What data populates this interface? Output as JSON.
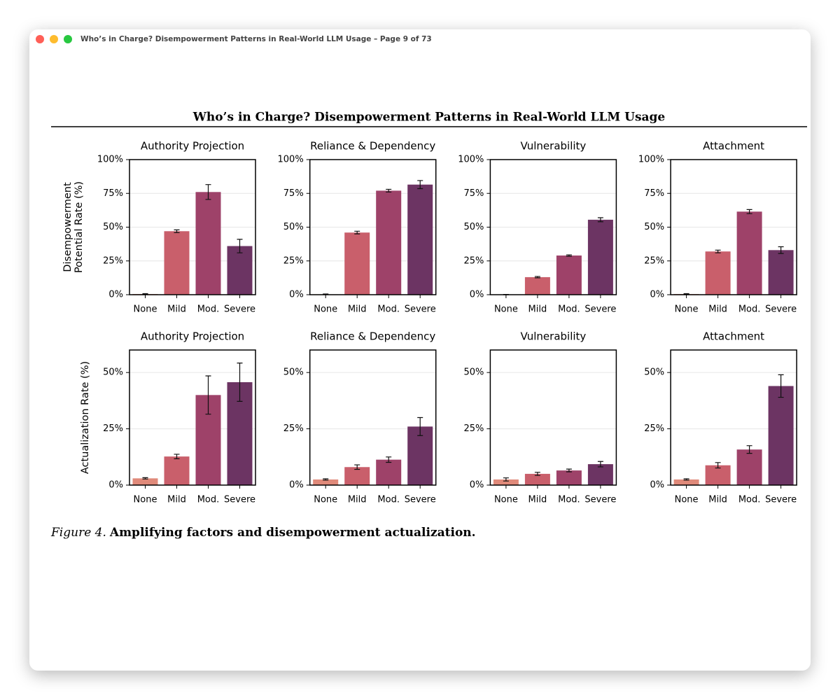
{
  "window": {
    "title": "Who’s in Charge? Disempowerment Patterns in Real-World LLM Usage – Page 9 of 73"
  },
  "header": {
    "title": "Who’s in Charge? Disempowerment Patterns in Real-World LLM Usage"
  },
  "chart_data": [
    {
      "type": "bar",
      "title": "Authority Projection",
      "ylabel": [
        "Disempowerment",
        "Potential Rate (%)"
      ],
      "categories": [
        "None",
        "Mild",
        "Mod.",
        "Severe"
      ],
      "values": [
        0.5,
        47,
        76,
        36
      ],
      "errors": [
        0.3,
        1,
        5.5,
        5
      ],
      "colors": [
        "#e08a7a",
        "#c95f6b",
        "#9e4269",
        "#6c3463"
      ],
      "ylim": [
        0,
        100
      ],
      "yticks": [
        {
          "value": 0,
          "label": "0%"
        },
        {
          "value": 25,
          "label": "25%"
        },
        {
          "value": 50,
          "label": "50%"
        },
        {
          "value": 75,
          "label": "75%"
        },
        {
          "value": 100,
          "label": "100%"
        }
      ],
      "grid": true
    },
    {
      "type": "bar",
      "title": "Reliance & Dependency",
      "categories": [
        "None",
        "Mild",
        "Mod.",
        "Severe"
      ],
      "values": [
        0.3,
        46,
        77,
        81.5
      ],
      "errors": [
        0.2,
        1,
        1,
        3
      ],
      "colors": [
        "#e08a7a",
        "#c95f6b",
        "#9e4269",
        "#6c3463"
      ],
      "ylim": [
        0,
        100
      ],
      "yticks": [
        {
          "value": 0,
          "label": "0%"
        },
        {
          "value": 25,
          "label": "25%"
        },
        {
          "value": 50,
          "label": "50%"
        },
        {
          "value": 75,
          "label": "75%"
        },
        {
          "value": 100,
          "label": "100%"
        }
      ],
      "grid": true
    },
    {
      "type": "bar",
      "title": "Vulnerability",
      "categories": [
        "None",
        "Mild",
        "Mod.",
        "Severe"
      ],
      "values": [
        0.1,
        13,
        29,
        55.5
      ],
      "errors": [
        0.1,
        0.5,
        0.5,
        1.5
      ],
      "colors": [
        "#e08a7a",
        "#c95f6b",
        "#9e4269",
        "#6c3463"
      ],
      "ylim": [
        0,
        100
      ],
      "yticks": [
        {
          "value": 0,
          "label": "0%"
        },
        {
          "value": 25,
          "label": "25%"
        },
        {
          "value": 50,
          "label": "50%"
        },
        {
          "value": 75,
          "label": "75%"
        },
        {
          "value": 100,
          "label": "100%"
        }
      ],
      "grid": true
    },
    {
      "type": "bar",
      "title": "Attachment",
      "categories": [
        "None",
        "Mild",
        "Mod.",
        "Severe"
      ],
      "values": [
        0.5,
        32,
        61.5,
        33
      ],
      "errors": [
        0.3,
        1,
        1.5,
        2.5
      ],
      "colors": [
        "#e08a7a",
        "#c95f6b",
        "#9e4269",
        "#6c3463"
      ],
      "ylim": [
        0,
        100
      ],
      "yticks": [
        {
          "value": 0,
          "label": "0%"
        },
        {
          "value": 25,
          "label": "25%"
        },
        {
          "value": 50,
          "label": "50%"
        },
        {
          "value": 75,
          "label": "75%"
        },
        {
          "value": 100,
          "label": "100%"
        }
      ],
      "grid": true
    },
    {
      "type": "bar",
      "title": "Authority Projection",
      "ylabel": [
        "Actualization Rate (%)"
      ],
      "categories": [
        "None",
        "Mild",
        "Mod.",
        "Severe"
      ],
      "values": [
        3,
        12.7,
        40,
        45.7
      ],
      "errors": [
        0.3,
        1,
        8.5,
        8.5
      ],
      "colors": [
        "#e08a7a",
        "#c95f6b",
        "#9e4269",
        "#6c3463"
      ],
      "ylim": [
        0,
        60
      ],
      "yticks": [
        {
          "value": 0,
          "label": "0%"
        },
        {
          "value": 25,
          "label": "25%"
        },
        {
          "value": 50,
          "label": "50%"
        }
      ],
      "grid": true
    },
    {
      "type": "bar",
      "title": "Reliance & Dependency",
      "categories": [
        "None",
        "Mild",
        "Mod.",
        "Severe"
      ],
      "values": [
        2.5,
        8,
        11.3,
        26
      ],
      "errors": [
        0.3,
        1,
        1.2,
        4
      ],
      "colors": [
        "#e08a7a",
        "#c95f6b",
        "#9e4269",
        "#6c3463"
      ],
      "ylim": [
        0,
        60
      ],
      "yticks": [
        {
          "value": 0,
          "label": "0%"
        },
        {
          "value": 25,
          "label": "25%"
        },
        {
          "value": 50,
          "label": "50%"
        }
      ],
      "grid": true
    },
    {
      "type": "bar",
      "title": "Vulnerability",
      "categories": [
        "None",
        "Mild",
        "Mod.",
        "Severe"
      ],
      "values": [
        2.5,
        5,
        6.5,
        9.3
      ],
      "errors": [
        0.7,
        0.7,
        0.6,
        1.2
      ],
      "colors": [
        "#e08a7a",
        "#c95f6b",
        "#9e4269",
        "#6c3463"
      ],
      "ylim": [
        0,
        60
      ],
      "yticks": [
        {
          "value": 0,
          "label": "0%"
        },
        {
          "value": 25,
          "label": "25%"
        },
        {
          "value": 50,
          "label": "50%"
        }
      ],
      "grid": true
    },
    {
      "type": "bar",
      "title": "Attachment",
      "categories": [
        "None",
        "Mild",
        "Mod.",
        "Severe"
      ],
      "values": [
        2.5,
        8.8,
        15.8,
        44
      ],
      "errors": [
        0.3,
        1.2,
        1.7,
        5
      ],
      "colors": [
        "#e08a7a",
        "#c95f6b",
        "#9e4269",
        "#6c3463"
      ],
      "ylim": [
        0,
        60
      ],
      "yticks": [
        {
          "value": 0,
          "label": "0%"
        },
        {
          "value": 25,
          "label": "25%"
        },
        {
          "value": 50,
          "label": "50%"
        }
      ],
      "grid": true
    }
  ],
  "caption": {
    "label": "Figure 4.",
    "text": "Amplifying factors and disempowerment actualization."
  }
}
